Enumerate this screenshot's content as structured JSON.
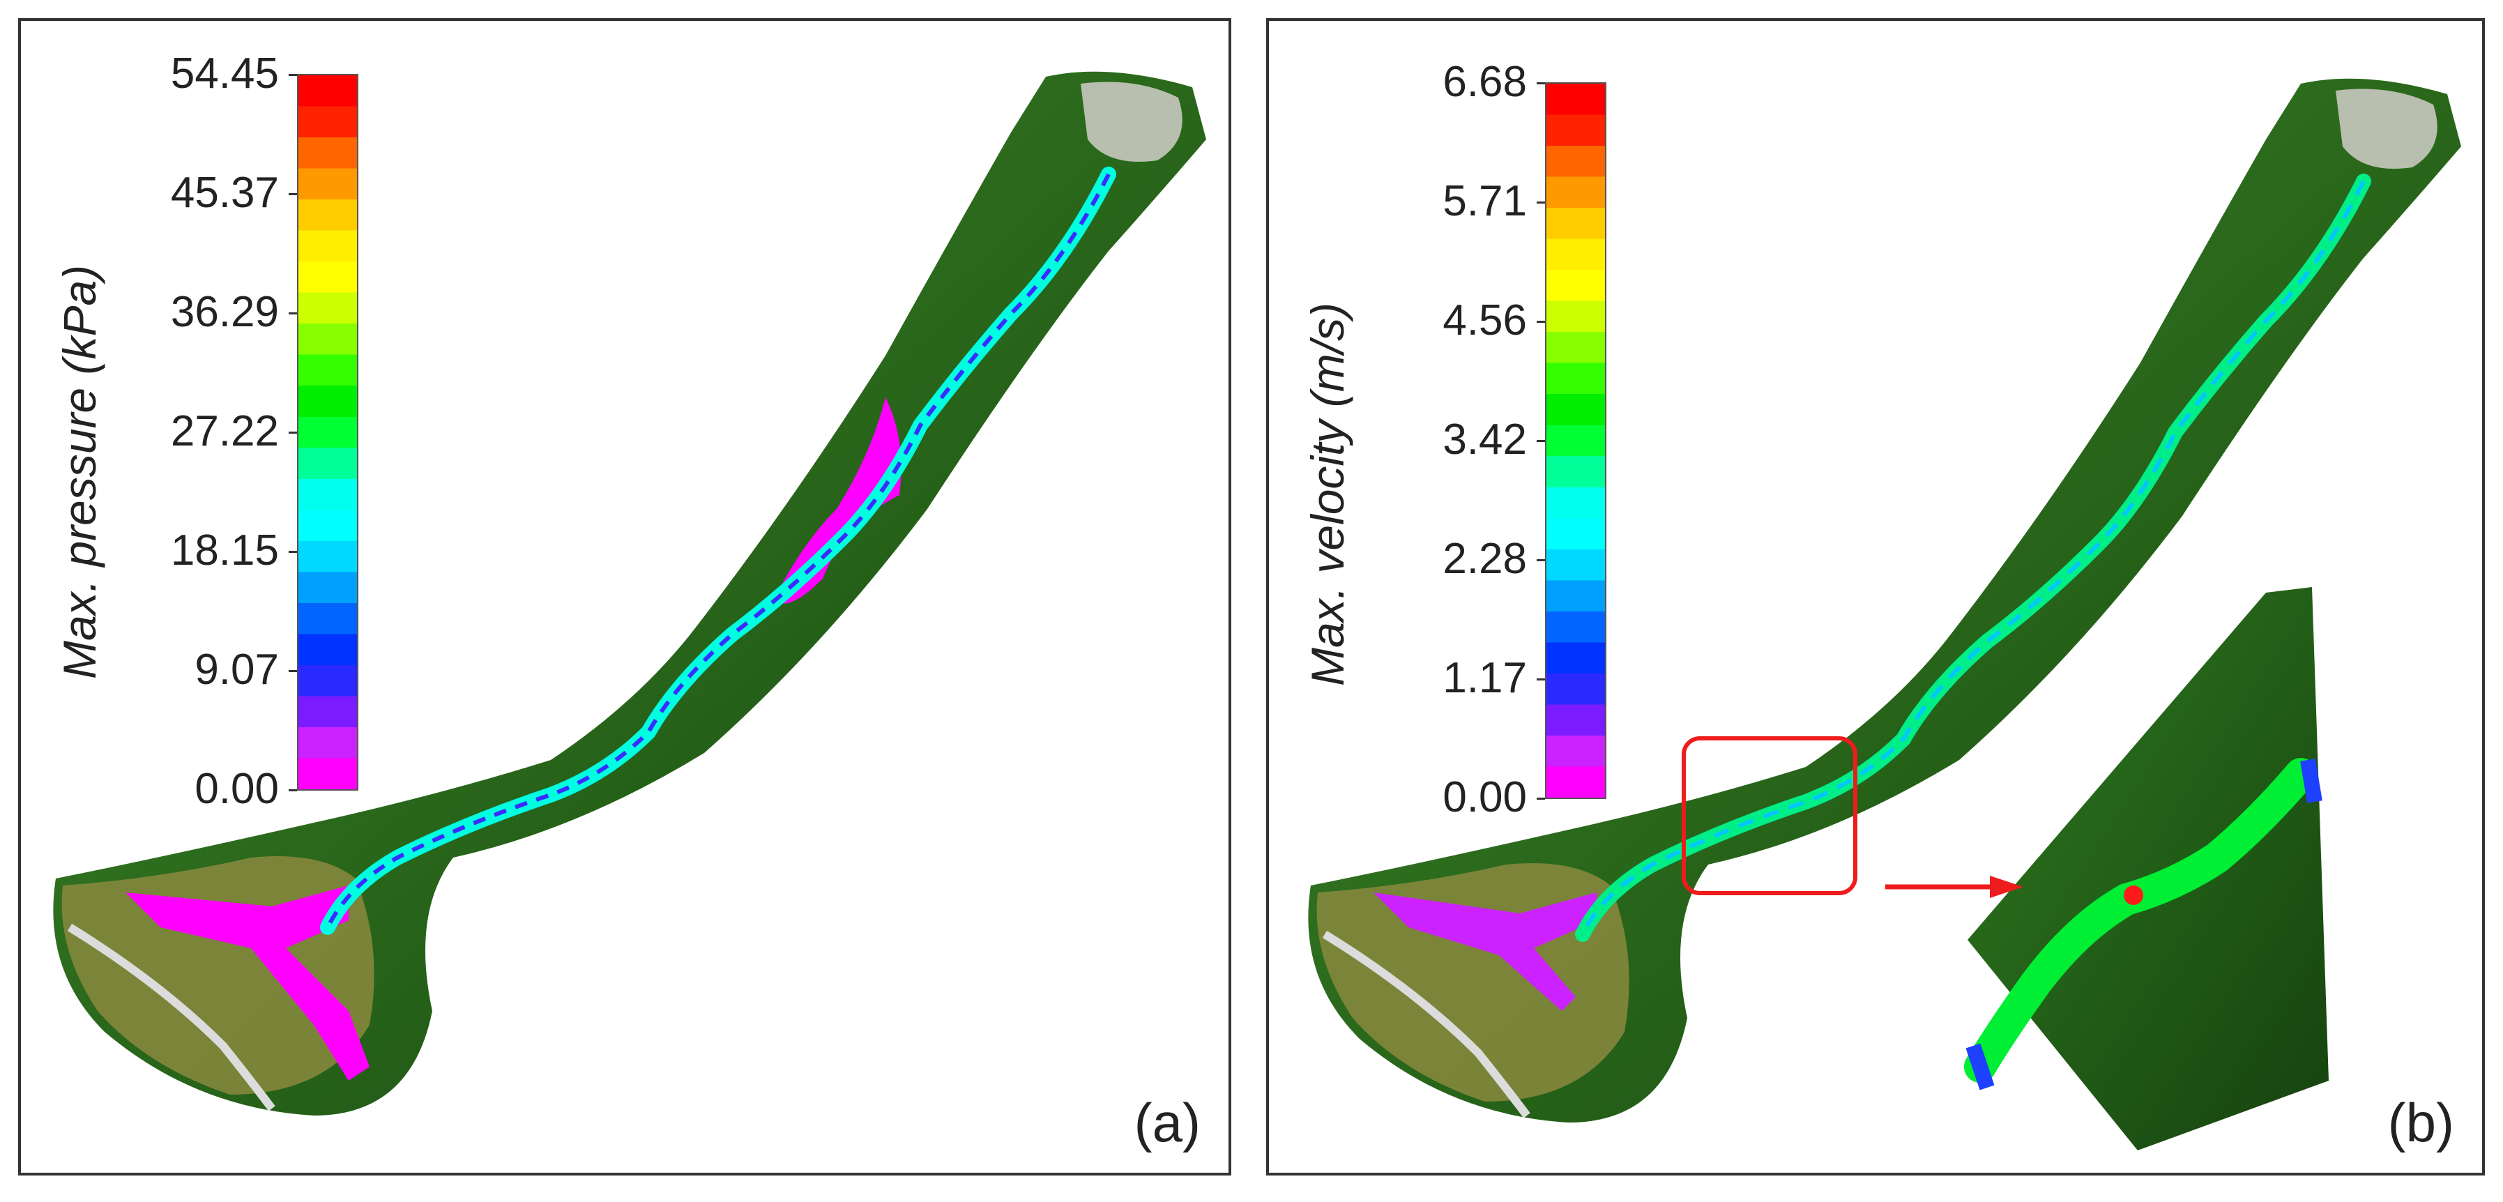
{
  "panels": [
    {
      "label": "(a)",
      "colorbar_title": "Max. pressure (kPa)",
      "ticks": [
        "54.45",
        "45.37",
        "36.29",
        "27.22",
        "18.15",
        "9.07",
        "0.00"
      ],
      "unit": "kPa"
    },
    {
      "label": "(b)",
      "colorbar_title": "Max. velocity (m/s)",
      "ticks": [
        "6.68",
        "5.71",
        "4.56",
        "3.42",
        "2.28",
        "1.17",
        "0.00"
      ],
      "unit": "m/s"
    }
  ],
  "colormap": [
    "#ff00ff",
    "#cc22ff",
    "#7a1cff",
    "#2a2aff",
    "#0033ff",
    "#0066ff",
    "#00a0ff",
    "#00d8ff",
    "#00ffff",
    "#00ffee",
    "#00ff99",
    "#00ff33",
    "#00ee00",
    "#33ff00",
    "#88ff00",
    "#ccff00",
    "#ffff00",
    "#ffee00",
    "#ffcc00",
    "#ff9900",
    "#ff6600",
    "#ff2200",
    "#ff0000"
  ],
  "colors": {
    "forest": "#2f6e1f",
    "forest_dark": "#1d4a14",
    "farmland": "#9a8a4a",
    "road": "#d9d9d9",
    "zoom_box": "#ee1c1c"
  }
}
